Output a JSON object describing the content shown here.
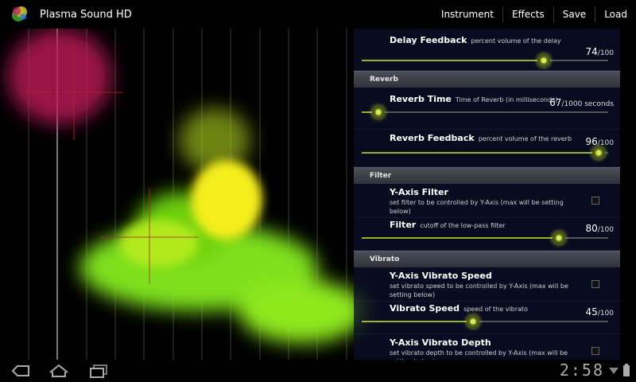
{
  "app": {
    "title": "Plasma Sound HD"
  },
  "menu": [
    "Instrument",
    "Effects",
    "Save",
    "Load"
  ],
  "panel": {
    "delay_feedback": {
      "title": "Delay Feedback",
      "desc": "percent volume of the delay",
      "value": "74",
      "max": "/100",
      "level": 0.74
    },
    "reverb_header": "Reverb",
    "reverb_time": {
      "title": "Reverb Time",
      "desc": "Time of Reverb (in milliseconds)",
      "value": "67",
      "max": "/1000 seconds",
      "level": 0.067
    },
    "reverb_feedback": {
      "title": "Reverb Feedback",
      "desc": "percent volume of the reverb",
      "value": "96",
      "max": "/100",
      "level": 0.96
    },
    "filter_header": "Filter",
    "y_axis_filter": {
      "title": "Y-Axis Filter",
      "desc": "set filter to be controlled by Y-Axis (max will be setting below)"
    },
    "filter": {
      "title": "Filter",
      "desc": "cutoff of the low-pass filter",
      "value": "80",
      "max": "/100",
      "level": 0.8
    },
    "vibrato_header": "Vibrato",
    "y_axis_vibrato_speed": {
      "title": "Y-Axis Vibrato Speed",
      "desc": "set vibrato speed to be controlled by Y-Axis (max will be setting below)"
    },
    "vibrato_speed": {
      "title": "Vibrato Speed",
      "desc": "speed of the vibrato",
      "value": "45",
      "max": "/100",
      "level": 0.45
    },
    "y_axis_vibrato_depth": {
      "title": "Y-Axis Vibrato Depth",
      "desc": "set vibrato depth to be controlled by Y-Axis (max will be setting below)"
    }
  },
  "status": {
    "clock": "2:58"
  },
  "colors": {
    "accent": "#9cb42c",
    "header": "#3a3d45"
  }
}
